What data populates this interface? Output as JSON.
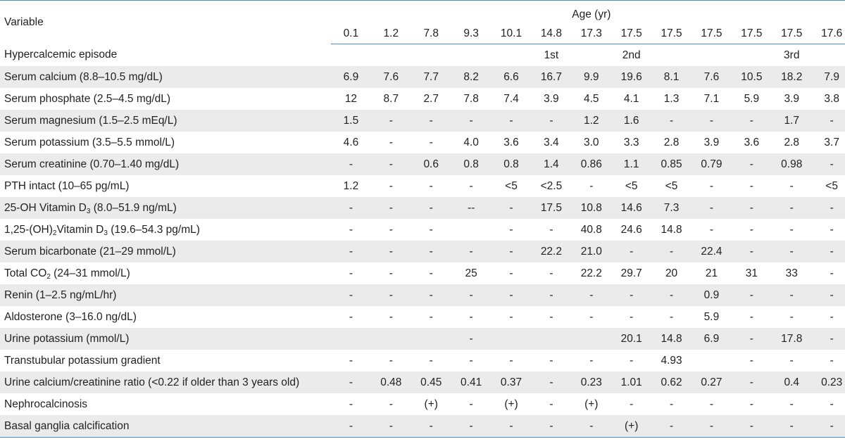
{
  "header": {
    "variable_label": "Variable",
    "group_label": "Age (yr)",
    "ages": [
      "0.1",
      "1.2",
      "7.8",
      "9.3",
      "10.1",
      "14.8",
      "17.3",
      "17.5",
      "17.5",
      "17.5",
      "17.5",
      "17.5",
      "17.6"
    ]
  },
  "rows": [
    {
      "label_parts": [
        "Hypercalcemic episode"
      ],
      "values": [
        "",
        "",
        "",
        "",
        "",
        "1st",
        "",
        "2nd",
        "",
        "",
        "",
        "3rd",
        ""
      ]
    },
    {
      "label_parts": [
        "Serum calcium (8.8–10.5 mg/dL)"
      ],
      "values": [
        "6.9",
        "7.6",
        "7.7",
        "8.2",
        "6.6",
        "16.7",
        "9.9",
        "19.6",
        "8.1",
        "7.6",
        "10.5",
        "18.2",
        "7.9"
      ]
    },
    {
      "label_parts": [
        "Serum phosphate (2.5–4.5 mg/dL)"
      ],
      "values": [
        "12",
        "8.7",
        "2.7",
        "7.8",
        "7.4",
        "3.9",
        "4.5",
        "4.1",
        "1.3",
        "7.1",
        "5.9",
        "3.9",
        "3.8"
      ]
    },
    {
      "label_parts": [
        "Serum magnesium (1.5–2.5 mEq/L)"
      ],
      "values": [
        "1.5",
        "-",
        "-",
        "-",
        "-",
        "-",
        "1.2",
        "1.6",
        "-",
        "-",
        "-",
        "1.7",
        "-"
      ]
    },
    {
      "label_parts": [
        "Serum potassium (3.5–5.5 mmol/L)"
      ],
      "values": [
        "4.6",
        "-",
        "-",
        "4.0",
        "3.6",
        "3.4",
        "3.0",
        "3.3",
        "2.8",
        "3.9",
        "3.6",
        "2.8",
        "3.7"
      ]
    },
    {
      "label_parts": [
        "Serum creatinine (0.70–1.40 mg/dL)"
      ],
      "values": [
        "-",
        "-",
        "0.6",
        "0.8",
        "0.8",
        "1.4",
        "0.86",
        "1.1",
        "0.85",
        "0.79",
        "-",
        "0.98",
        "-"
      ]
    },
    {
      "label_parts": [
        "PTH intact (10–65 pg/mL)"
      ],
      "values": [
        "1.2",
        "-",
        "-",
        "-",
        "<5",
        "<2.5",
        "-",
        "<5",
        "<5",
        "-",
        "-",
        "-",
        "<5"
      ]
    },
    {
      "label_parts": [
        "25-OH Vitamin D",
        "3",
        " (8.0–51.9 ng/mL)"
      ],
      "values": [
        "-",
        "-",
        "-",
        "--",
        "-",
        "17.5",
        "10.8",
        "14.6",
        "7.3",
        "-",
        "-",
        "-",
        "-"
      ]
    },
    {
      "label_parts": [
        "1,25-(OH)",
        "2",
        "Vitamin D",
        "3",
        " (19.6–54.3 pg/mL)"
      ],
      "values": [
        "-",
        "-",
        "-",
        "",
        "-",
        "-",
        "40.8",
        "24.6",
        "14.8",
        "-",
        "-",
        "-",
        "-"
      ]
    },
    {
      "label_parts": [
        "Serum bicarbonate (21–29 mmol/L)"
      ],
      "values": [
        "-",
        "-",
        "-",
        "-",
        "-",
        "22.2",
        "21.0",
        "-",
        "-",
        "22.4",
        "-",
        "-",
        "-"
      ]
    },
    {
      "label_parts": [
        "Total CO",
        "2",
        " (24–31 mmol/L)"
      ],
      "values": [
        "-",
        "-",
        "-",
        "25",
        "-",
        "-",
        "22.2",
        "29.7",
        "20",
        "21",
        "31",
        "33",
        "-"
      ]
    },
    {
      "label_parts": [
        "Renin (1–2.5 ng/mL/hr)"
      ],
      "values": [
        "-",
        "-",
        "-",
        "-",
        "-",
        "-",
        "-",
        "-",
        "-",
        "0.9",
        "-",
        "-",
        "-"
      ]
    },
    {
      "label_parts": [
        "Aldosterone (3–16.0 ng/dL)"
      ],
      "values": [
        "-",
        "-",
        "-",
        "-",
        "-",
        "-",
        "-",
        "-",
        "-",
        "5.9",
        "-",
        "-",
        "-"
      ]
    },
    {
      "label_parts": [
        "Urine potassium (mmol/L)"
      ],
      "values": [
        "",
        "",
        "",
        "-",
        "",
        "",
        "",
        "20.1",
        "14.8",
        "6.9",
        "-",
        "17.8",
        "-"
      ]
    },
    {
      "label_parts": [
        "Transtubular potassium gradient"
      ],
      "values": [
        "-",
        "-",
        "-",
        "-",
        "-",
        "-",
        "-",
        "-",
        "4.93",
        "",
        "-",
        "-",
        "-"
      ]
    },
    {
      "label_parts": [
        "Urine calcium/creatinine ratio (<0.22 if older than 3 years old)"
      ],
      "values": [
        "-",
        "0.48",
        "0.45",
        "0.41",
        "0.37",
        "-",
        "0.23",
        "1.01",
        "0.62",
        "0.27",
        "-",
        "0.4",
        "0.23"
      ]
    },
    {
      "label_parts": [
        "Nephrocalcinosis"
      ],
      "values": [
        "-",
        "-",
        "(+)",
        "-",
        "(+)",
        "-",
        "(+)",
        "-",
        "-",
        "-",
        "-",
        "-",
        "-"
      ]
    },
    {
      "label_parts": [
        "Basal ganglia calcification"
      ],
      "values": [
        "-",
        "-",
        "-",
        "-",
        "-",
        "-",
        "-",
        "(+)",
        "-",
        "-",
        "-",
        "-",
        "-"
      ]
    }
  ]
}
